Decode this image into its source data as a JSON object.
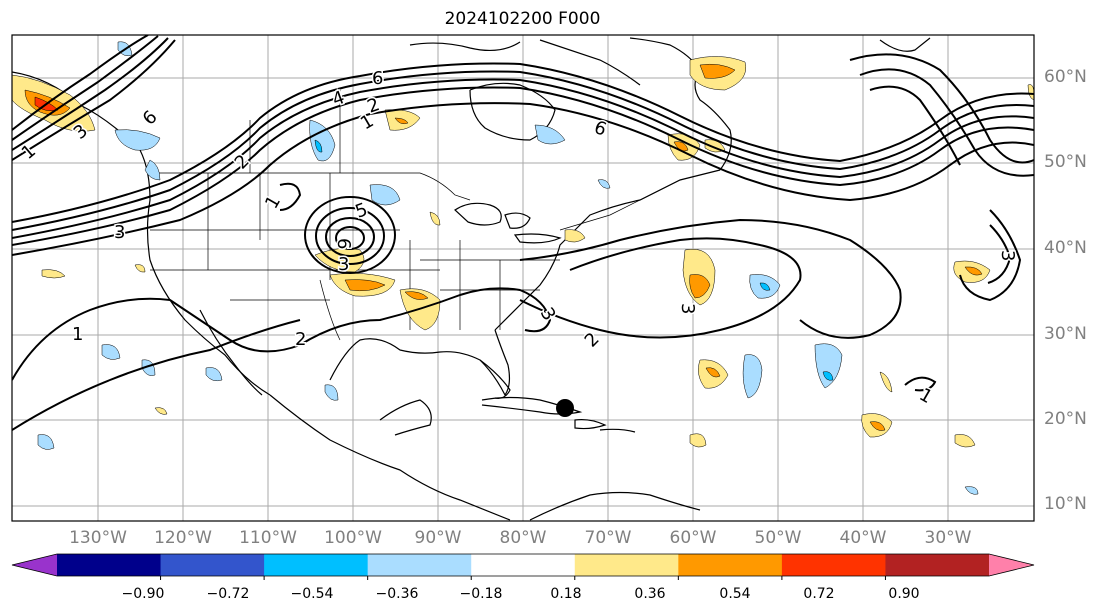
{
  "title": "2024102200 F000",
  "lat_labels": [
    "60°N",
    "50°N",
    "40°N",
    "30°N",
    "20°N",
    "10°N"
  ],
  "lon_labels": [
    "130°W",
    "120°W",
    "110°W",
    "100°W",
    "90°W",
    "80°W",
    "70°W",
    "60°W",
    "50°W",
    "40°W",
    "30°W"
  ],
  "colorbar": {
    "ticks": [
      "−0.90",
      "−0.72",
      "−0.54",
      "−0.36",
      "−0.18",
      "0.18",
      "0.36",
      "0.54",
      "0.72",
      "0.90"
    ],
    "colors": [
      "#9933cc",
      "#00008b",
      "#3355cc",
      "#00bfff",
      "#aaddff",
      "#ffffff",
      "#ffe98a",
      "#ff9900",
      "#ff3300",
      "#b22222",
      "#ff80aa"
    ]
  },
  "contour_labels": [
    "1",
    "1",
    "1",
    "1",
    "1",
    "2",
    "2",
    "2",
    "2",
    "3",
    "3",
    "3",
    "3",
    "3",
    "3",
    "4",
    "5",
    "6",
    "6",
    "6",
    "6"
  ],
  "legend_colors": {
    "positive_fill": "#ffe98a",
    "positive_mid": "#ff9900",
    "negative_fill": "#aaddff",
    "negative_mid": "#00bfff"
  }
}
